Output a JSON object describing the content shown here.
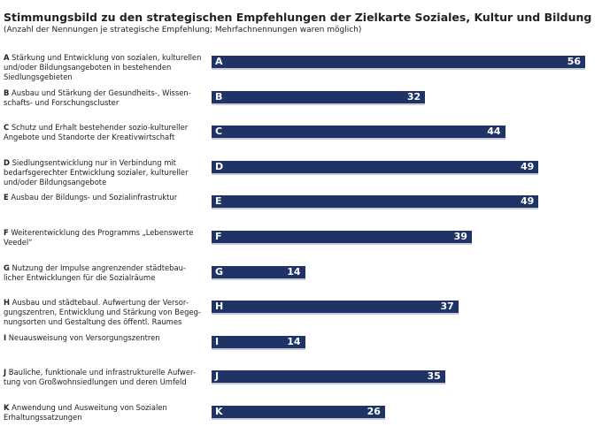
{
  "chart_data": {
    "type": "bar",
    "orientation": "horizontal",
    "title": "Stimmungsbild zu den strategischen Empfehlungen der Zielkarte Soziales, Kultur und Bildung",
    "subtitle": "(Anzahl der Nennungen je strategische Empfehlung; Mehrfachnennungen waren möglich)",
    "bar_color": "#1f3366",
    "grid": false,
    "xlim": [
      0,
      56
    ],
    "categories": [
      {
        "letter": "A",
        "text": "Stärkung und Entwicklung von sozialen, kulturellen und/oder Bildungsangeboten in bestehenden Siedlungsgebieten"
      },
      {
        "letter": "B",
        "text": "Ausbau und Stärkung der Gesundheits-, Wissen-schafts- und Forschungscluster"
      },
      {
        "letter": "C",
        "text": "Schutz und Erhalt bestehender sozio-kultureller Angebote und Standorte der Kreativwirtschaft"
      },
      {
        "letter": "D",
        "text": "Siedlungsentwicklung nur in Verbindung mit bedarfsgerechter Entwicklung sozialer, kultureller und/oder Bildungsangebote"
      },
      {
        "letter": "E",
        "text": "Ausbau der Bildungs- und Sozialinfrastruktur"
      },
      {
        "letter": "F",
        "text": "Weiterentwicklung des Programms „Lebenswerte Veedel“"
      },
      {
        "letter": "G",
        "text": "Nutzung der Impulse angrenzender städtebau-licher Entwicklungen für die Sozialräume"
      },
      {
        "letter": "H",
        "text": "Ausbau und städtebaul. Aufwertung der Versor-gungszentren, Entwicklung und Stärkung von Begeg-nungsorten und Gestaltung des öffentl. Raumes"
      },
      {
        "letter": "I",
        "text": "Neuausweisung von Versorgungszentren"
      },
      {
        "letter": "J",
        "text": "Bauliche, funktionale und infrastrukturelle Aufwer-tung von Großwohnsiedlungen und deren Umfeld"
      },
      {
        "letter": "K",
        "text": "Anwendung und Ausweitung von Sozialen Erhaltungssatzungen"
      }
    ],
    "values": [
      56,
      32,
      44,
      49,
      49,
      39,
      14,
      37,
      14,
      35,
      26
    ]
  }
}
